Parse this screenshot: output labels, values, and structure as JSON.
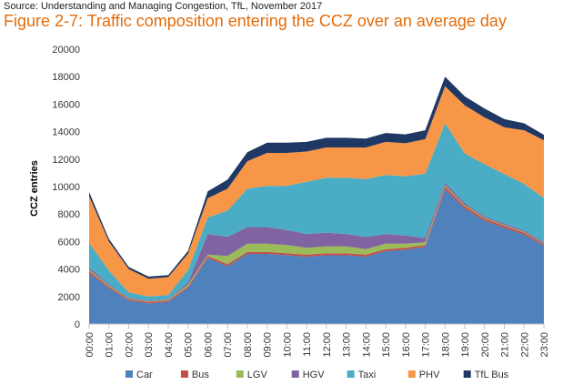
{
  "source": "Source: Understanding and Managing Congestion, TfL, November 2017",
  "title": "Figure 2-7: Traffic composition entering the CCZ over an average day",
  "chart_data": {
    "type": "area",
    "stacked": true,
    "title": "Figure 2-7: Traffic composition entering the CCZ over an average day",
    "xlabel": "",
    "ylabel": "CCZ entries",
    "ylim": [
      0,
      20000
    ],
    "yticks": [
      0,
      2000,
      4000,
      6000,
      8000,
      10000,
      12000,
      14000,
      16000,
      18000,
      20000
    ],
    "ytick_labels": [
      "0",
      "2000",
      "4000",
      "6000",
      "8000",
      "10000",
      "12000",
      "14000",
      "16000",
      "18000",
      "20000"
    ],
    "categories": [
      "00:00",
      "01:00",
      "02:00",
      "03:00",
      "04:00",
      "05:00",
      "06:00",
      "07:00",
      "08:00",
      "09:00",
      "10:00",
      "11:00",
      "12:00",
      "13:00",
      "14:00",
      "15:00",
      "16:00",
      "17:00",
      "18:00",
      "19:00",
      "20:00",
      "21:00",
      "22:00",
      "23:00"
    ],
    "series": [
      {
        "name": "Car",
        "color": "#4f81bd",
        "values": [
          3700,
          2600,
          1700,
          1500,
          1600,
          2600,
          4800,
          4200,
          5100,
          5100,
          5000,
          4900,
          5000,
          5000,
          4900,
          5300,
          5400,
          5600,
          9800,
          8400,
          7500,
          7000,
          6500,
          5700
        ]
      },
      {
        "name": "Bus",
        "color": "#c0504d",
        "values": [
          150,
          120,
          100,
          100,
          100,
          120,
          150,
          150,
          150,
          150,
          150,
          150,
          150,
          150,
          150,
          150,
          150,
          150,
          200,
          180,
          170,
          160,
          150,
          130
        ]
      },
      {
        "name": "LGV",
        "color": "#9bbb59",
        "values": [
          100,
          80,
          50,
          50,
          60,
          150,
          100,
          600,
          600,
          600,
          600,
          500,
          500,
          500,
          400,
          400,
          300,
          200,
          100,
          80,
          60,
          50,
          50,
          40
        ]
      },
      {
        "name": "HGV",
        "color": "#8064a2",
        "values": [
          150,
          100,
          50,
          50,
          50,
          150,
          1500,
          1400,
          1200,
          1200,
          1100,
          1000,
          1000,
          900,
          900,
          700,
          600,
          300,
          200,
          150,
          100,
          100,
          100,
          100
        ]
      },
      {
        "name": "Taxi",
        "color": "#4bacc6",
        "values": [
          1800,
          1000,
          400,
          300,
          300,
          900,
          1200,
          1900,
          2800,
          3000,
          3200,
          3800,
          4000,
          4100,
          4200,
          4300,
          4300,
          4700,
          4300,
          3600,
          3800,
          3600,
          3400,
          3200
        ]
      },
      {
        "name": "PHV",
        "color": "#f79646",
        "values": [
          3400,
          2100,
          1700,
          1300,
          1300,
          1200,
          1400,
          1600,
          2000,
          2400,
          2400,
          2200,
          2200,
          2200,
          2300,
          2400,
          2400,
          2500,
          2700,
          3500,
          3400,
          3400,
          3900,
          4200
        ]
      },
      {
        "name": "TfL Bus",
        "color": "#1f3864",
        "values": [
          300,
          200,
          150,
          150,
          150,
          200,
          500,
          650,
          650,
          750,
          750,
          700,
          700,
          700,
          650,
          650,
          650,
          650,
          700,
          650,
          650,
          600,
          500,
          400
        ]
      }
    ],
    "legend_position": "bottom"
  }
}
